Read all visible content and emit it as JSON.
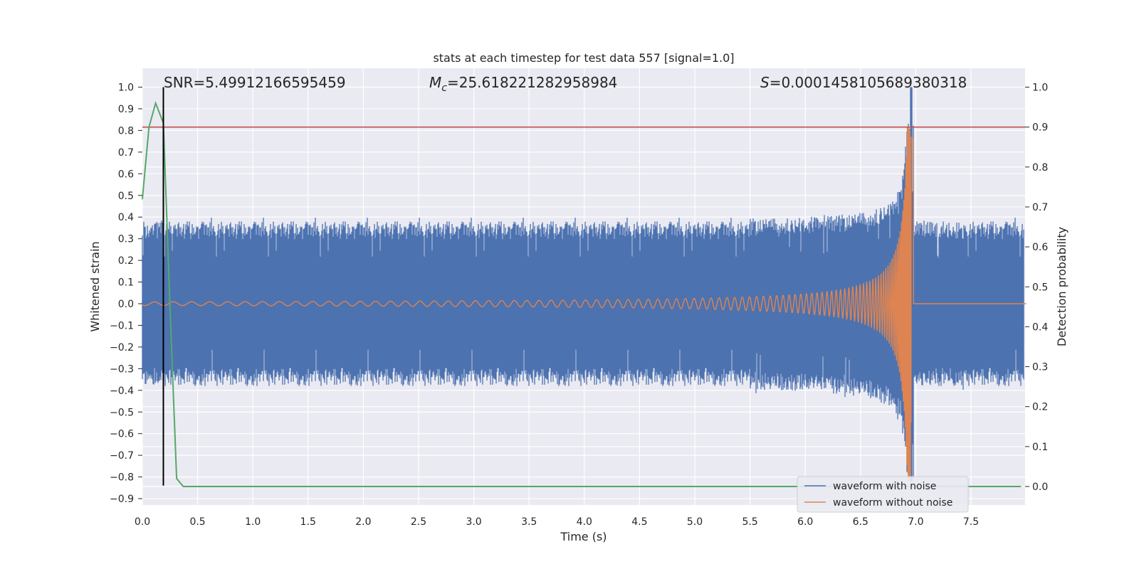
{
  "chart_data": {
    "type": "line",
    "title": "stats at each timestep for test data 557 [signal=1.0]",
    "xlabel": "Time (s)",
    "ylabel_left": "Whitened strain",
    "ylabel_right": "Detection probability",
    "xlim": [
      0.0,
      8.0
    ],
    "ylim_left": [
      -0.93,
      1.08
    ],
    "ylim_right": [
      -0.04,
      1.04
    ],
    "x_ticks": [
      "0.0",
      "0.5",
      "1.0",
      "1.5",
      "2.0",
      "2.5",
      "3.0",
      "3.5",
      "4.0",
      "4.5",
      "5.0",
      "5.5",
      "6.0",
      "6.5",
      "7.0",
      "7.5"
    ],
    "y_ticks_left": [
      "-0.9",
      "-0.8",
      "-0.7",
      "-0.6",
      "-0.5",
      "-0.4",
      "-0.3",
      "-0.2",
      "-0.1",
      "0.0",
      "0.1",
      "0.2",
      "0.3",
      "0.4",
      "0.5",
      "0.6",
      "0.7",
      "0.8",
      "0.9",
      "1.0"
    ],
    "y_ticks_right": [
      "0.0",
      "0.1",
      "0.2",
      "0.3",
      "0.4",
      "0.5",
      "0.6",
      "0.7",
      "0.8",
      "0.9",
      "1.0"
    ],
    "grid": true,
    "legend_position": "lower-right",
    "annotations": {
      "snr": "SNR=5.49912166595459",
      "mc_symbol": "M",
      "mc_sub": "c",
      "mc_value": "=25.618221282958984",
      "s_symbol": "S",
      "s_value": "=0.0001458105689380318"
    },
    "series": [
      {
        "name": "waveform with noise",
        "color": "#4c72b0",
        "axis": "left",
        "noise_amplitude": 0.38,
        "peak": 1.0,
        "trough": -0.82
      },
      {
        "name": "waveform without noise",
        "color": "#dd8452",
        "axis": "left",
        "merger_time": 6.96,
        "peak_amplitude": 0.82
      }
    ],
    "detection_probability": {
      "color": "#55a868",
      "axis": "right",
      "x": [
        0.0,
        0.06,
        0.12,
        0.19,
        0.25,
        0.31,
        0.37,
        0.5,
        1.0,
        2.0,
        3.0,
        4.0,
        5.0,
        6.0,
        7.0,
        7.95
      ],
      "y": [
        0.72,
        0.9,
        0.96,
        0.91,
        0.45,
        0.02,
        0.0,
        0.0,
        0.0,
        0.0,
        0.0,
        0.0,
        0.0,
        0.0,
        0.0,
        0.0
      ]
    },
    "threshold": {
      "value": 0.9,
      "axis": "right",
      "color": "#c44e52"
    },
    "vline": {
      "x": 0.19,
      "color": "#000000",
      "ymin": -0.84,
      "ymax": 1.0
    }
  }
}
